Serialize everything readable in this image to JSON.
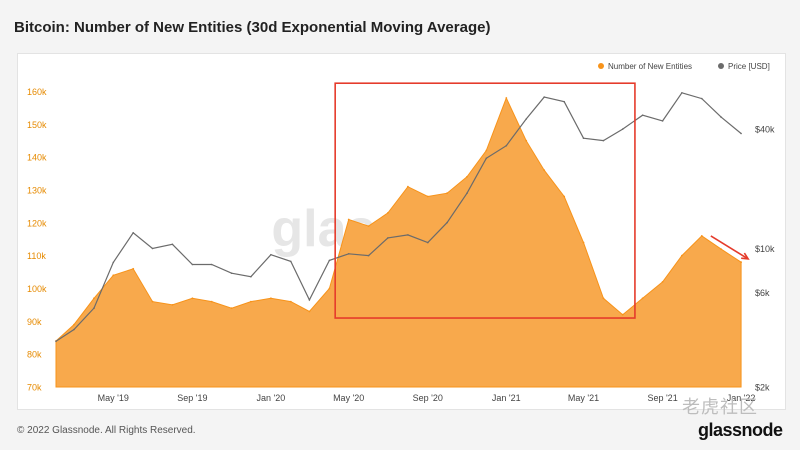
{
  "title": "Bitcoin: Number of New Entities (30d Exponential Moving Average)",
  "footer": "© 2022 Glassnode. All Rights Reserved.",
  "brand": "glassnode",
  "watermark": "老虎社区",
  "colors": {
    "entities": "#f7931a",
    "entities_fill": "#f8a94c",
    "price": "#6b6b6b",
    "highlight": "#e53b2b",
    "left_axis": "#e68a00",
    "right_axis": "#444444"
  },
  "chart_data": {
    "type": "area",
    "title": "Bitcoin: Number of New Entities (30d Exponential Moving Average)",
    "legend": {
      "placement": "top-right",
      "entries": [
        "Number of New Entities",
        "Price [USD]"
      ]
    },
    "x": [
      "2019-02-01",
      "2019-03-01",
      "2019-04-01",
      "2019-05-01",
      "2019-06-01",
      "2019-07-01",
      "2019-08-01",
      "2019-09-01",
      "2019-10-01",
      "2019-11-01",
      "2019-12-01",
      "2020-01-01",
      "2020-02-01",
      "2020-03-01",
      "2020-04-01",
      "2020-05-01",
      "2020-06-01",
      "2020-07-01",
      "2020-08-01",
      "2020-09-01",
      "2020-10-01",
      "2020-11-01",
      "2020-12-01",
      "2021-01-01",
      "2021-02-01",
      "2021-03-01",
      "2021-04-01",
      "2021-05-01",
      "2021-06-01",
      "2021-07-01",
      "2021-08-01",
      "2021-09-01",
      "2021-10-01",
      "2021-11-01",
      "2021-12-01",
      "2022-01-01"
    ],
    "xticks": [
      "May '19",
      "Sep '19",
      "Jan '20",
      "May '20",
      "Sep '20",
      "Jan '21",
      "May '21",
      "Sep '21",
      "Jan '22"
    ],
    "xtick_dates": [
      "2019-05-01",
      "2019-09-01",
      "2020-01-01",
      "2020-05-01",
      "2020-09-01",
      "2021-01-01",
      "2021-05-01",
      "2021-09-01",
      "2022-01-01"
    ],
    "xlim": [
      "2019-01-18",
      "2022-01-18"
    ],
    "series": [
      {
        "name": "Number of New Entities",
        "axis": "left",
        "values": [
          84000,
          89000,
          97000,
          104000,
          106000,
          96000,
          95000,
          97000,
          96000,
          94000,
          96000,
          97000,
          96000,
          93000,
          100000,
          121000,
          119000,
          123000,
          131000,
          128000,
          129000,
          134000,
          142000,
          158000,
          145000,
          136000,
          128000,
          114000,
          97000,
          92000,
          97000,
          102000,
          110000,
          116000,
          112000,
          108000
        ]
      },
      {
        "name": "Price [USD]",
        "axis": "right",
        "scale": "log",
        "values": [
          3400,
          3900,
          5000,
          8500,
          12000,
          10000,
          10500,
          8300,
          8300,
          7500,
          7200,
          9300,
          8600,
          5500,
          8700,
          9400,
          9200,
          11300,
          11700,
          10700,
          13500,
          19000,
          28500,
          33000,
          45000,
          58000,
          55000,
          36000,
          35000,
          40000,
          47000,
          44000,
          61000,
          57000,
          46000,
          38000
        ]
      }
    ],
    "yticks_left": [
      "70k",
      "80k",
      "90k",
      "100k",
      "110k",
      "120k",
      "130k",
      "140k",
      "150k",
      "160k"
    ],
    "ylim_left": [
      70000,
      165000
    ],
    "yticks_right": [
      "$2k",
      "$6k",
      "$10k",
      "$40k"
    ],
    "ylim_right": [
      2000,
      75000
    ],
    "annotations": [
      {
        "type": "rectangle",
        "color": "#e53b2b",
        "x_range": [
          "2020-04-10",
          "2021-07-20"
        ],
        "y_range_left": [
          91000,
          162500
        ]
      },
      {
        "type": "arrow",
        "color": "#e53b2b",
        "from": [
          "2021-11-15",
          116000
        ],
        "to": [
          "2022-01-12",
          109000
        ]
      }
    ],
    "grid": false
  }
}
